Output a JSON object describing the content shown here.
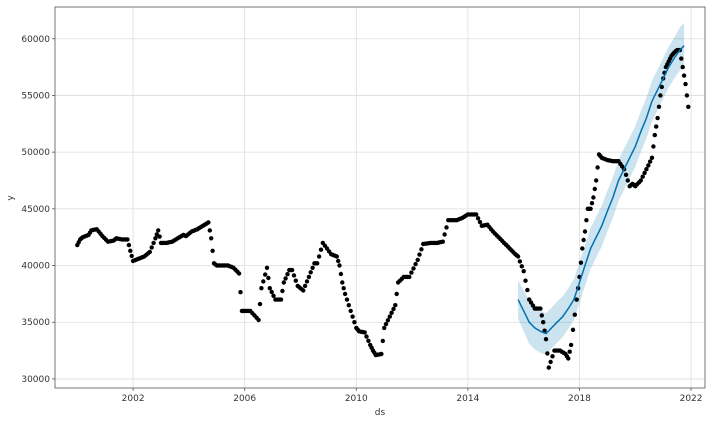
{
  "chart_data": {
    "type": "scatter",
    "title": "",
    "xlabel": "ds",
    "ylabel": "y",
    "xlim": [
      1999.2,
      2022.5
    ],
    "ylim": [
      29200,
      62800
    ],
    "x_ticks": [
      2002,
      2006,
      2010,
      2014,
      2018,
      2022
    ],
    "x_tick_labels": [
      "2002",
      "2006",
      "2010",
      "2014",
      "2018",
      "2022"
    ],
    "y_ticks": [
      30000,
      35000,
      40000,
      45000,
      50000,
      55000,
      60000
    ],
    "y_tick_labels": [
      "30000",
      "35000",
      "40000",
      "45000",
      "50000",
      "55000",
      "60000"
    ],
    "grid": true,
    "colors": {
      "points": "#000000",
      "forecast_line": "#0072B2",
      "interval_band": "#0072B2",
      "grid": "#dddddd",
      "axes": "#555555"
    },
    "series": [
      {
        "type": "scatter",
        "x": [
          2000.0,
          2000.1,
          2000.2,
          2000.4,
          2000.5,
          2000.7,
          2000.9,
          2001.1,
          2001.3,
          2001.4,
          2001.6,
          2001.8,
          2001.9,
          2002.0,
          2002.2,
          2002.4,
          2002.6,
          2002.8,
          2002.9,
          2003.0,
          2003.2,
          2003.4,
          2003.6,
          2003.8,
          2003.9,
          2004.1,
          2004.3,
          2004.5,
          2004.7,
          2004.8,
          2004.9,
          2005.0,
          2005.2,
          2005.4,
          2005.6,
          2005.8,
          2005.9,
          2006.0,
          2006.2,
          2006.5,
          2006.6,
          2006.8,
          2006.9,
          2007.1,
          2007.3,
          2007.4,
          2007.6,
          2007.7,
          2007.9,
          2008.1,
          2008.3,
          2008.5,
          2008.6,
          2008.8,
          2009.1,
          2009.3,
          2009.4,
          2009.5,
          2009.6,
          2009.8,
          2010.0,
          2010.1,
          2010.3,
          2010.5,
          2010.6,
          2010.7,
          2010.9,
          2011.0,
          2011.2,
          2011.4,
          2011.5,
          2011.7,
          2011.9,
          2012.2,
          2012.4,
          2012.7,
          2012.9,
          2013.1,
          2013.3,
          2013.6,
          2013.8,
          2014.0,
          2014.3,
          2014.5,
          2014.7,
          2014.9,
          2015.1,
          2015.3,
          2015.5,
          2015.7,
          2015.8,
          2016.0,
          2016.2,
          2016.4,
          2016.6,
          2016.7,
          2016.8,
          2016.9,
          2017.1,
          2017.3,
          2017.5,
          2017.6,
          2017.7,
          2017.9,
          2018.0,
          2018.1,
          2018.2,
          2018.3,
          2018.4,
          2018.5,
          2018.6,
          2018.7,
          2018.8,
          2019.0,
          2019.2,
          2019.4,
          2019.6,
          2019.8,
          2019.9,
          2020.0,
          2020.2,
          2020.4,
          2020.6,
          2020.7,
          2020.8,
          2020.9,
          2021.0,
          2021.1,
          2021.2,
          2021.3,
          2021.4,
          2021.5,
          2021.6,
          2021.7,
          2021.8,
          2021.9
        ],
        "y": [
          41800,
          42300,
          42500,
          42700,
          43100,
          43200,
          42600,
          42100,
          42200,
          42400,
          42300,
          42300,
          41300,
          40400,
          40600,
          40800,
          41200,
          42400,
          43100,
          42000,
          42000,
          42100,
          42400,
          42700,
          42600,
          43000,
          43200,
          43500,
          43800,
          42400,
          40200,
          40000,
          40000,
          40000,
          39800,
          39300,
          36000,
          36000,
          36000,
          35200,
          38000,
          39800,
          38000,
          37000,
          37000,
          38500,
          39600,
          39600,
          38200,
          37800,
          39000,
          40200,
          40200,
          42000,
          41000,
          40800,
          40000,
          38500,
          37500,
          36000,
          34500,
          34200,
          34100,
          33000,
          32500,
          32100,
          32200,
          34500,
          35500,
          36500,
          38500,
          39000,
          39000,
          40500,
          41900,
          42000,
          42000,
          42100,
          44000,
          44000,
          44200,
          44500,
          44500,
          43500,
          43600,
          43000,
          42500,
          42000,
          41500,
          41000,
          40800,
          39500,
          37000,
          36200,
          36200,
          35000,
          33500,
          31000,
          32500,
          32500,
          32200,
          31800,
          33000,
          37000,
          39000,
          41500,
          43000,
          45000,
          45000,
          46000,
          47500,
          49800,
          49500,
          49300,
          49200,
          49200,
          48500,
          47000,
          47200,
          47000,
          47500,
          48500,
          49500,
          51500,
          53000,
          55000,
          56500,
          57500,
          58000,
          58500,
          58800,
          59000,
          59000,
          57500,
          56000,
          54000
        ]
      },
      {
        "type": "line",
        "name": "",
        "x": [
          2015.8,
          2016.0,
          2016.2,
          2016.4,
          2016.6,
          2016.8,
          2017.0,
          2017.2,
          2017.4,
          2017.6,
          2017.8,
          2018.0,
          2018.2,
          2018.4,
          2018.6,
          2018.8,
          2019.0,
          2019.2,
          2019.4,
          2019.6,
          2019.8,
          2020.0,
          2020.2,
          2020.4,
          2020.6,
          2020.8,
          2021.0,
          2021.2,
          2021.4,
          2021.6,
          2021.75
        ],
        "y": [
          37000,
          36000,
          35000,
          34500,
          34200,
          34000,
          34500,
          35000,
          35500,
          36200,
          37000,
          38500,
          40000,
          41500,
          42500,
          43500,
          44800,
          46000,
          47500,
          48500,
          49500,
          50500,
          51800,
          53000,
          54500,
          55500,
          56500,
          57500,
          58300,
          59000,
          59400
        ],
        "upper": [
          38700,
          37800,
          36900,
          36500,
          36000,
          35800,
          36300,
          36800,
          37300,
          38000,
          38800,
          40300,
          41800,
          43300,
          44300,
          45300,
          46600,
          47800,
          49300,
          50300,
          51300,
          52300,
          53600,
          54800,
          56300,
          57300,
          58300,
          59300,
          60100,
          61000,
          61400
        ],
        "lower": [
          35300,
          34200,
          33100,
          32600,
          32300,
          32100,
          32700,
          33200,
          33700,
          34400,
          35200,
          36700,
          38200,
          39700,
          40700,
          41700,
          43000,
          44200,
          45700,
          46700,
          47700,
          48700,
          50000,
          51200,
          52700,
          53700,
          54700,
          55700,
          56500,
          57200,
          57500
        ]
      }
    ]
  }
}
